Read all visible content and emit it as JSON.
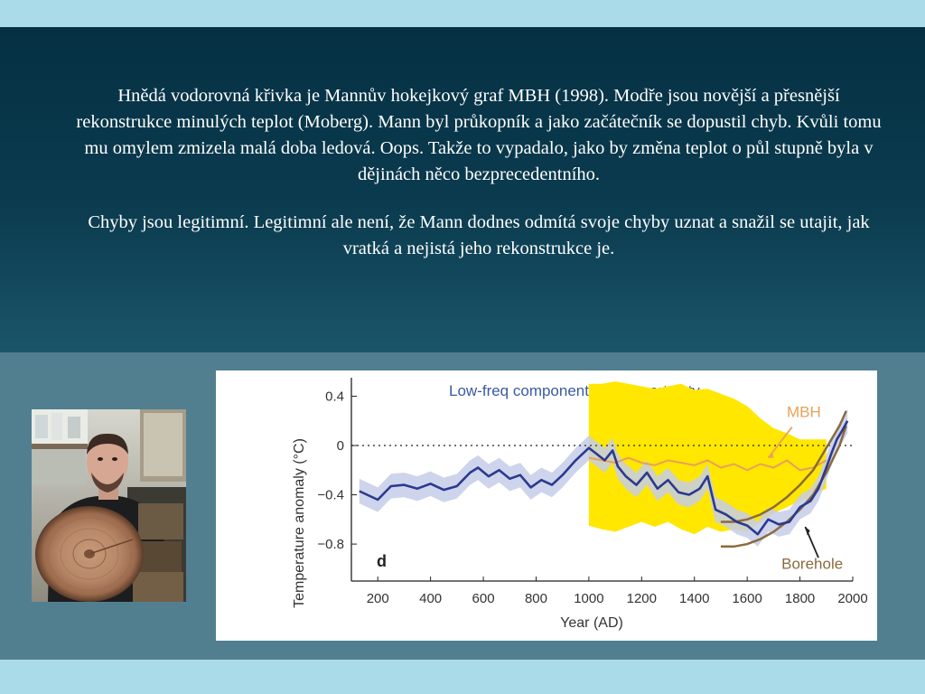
{
  "text": {
    "paragraph1": "Hnědá vodorovná křivka je Mannův hokejkový graf MBH (1998). Modře jsou novější a přesnější rekonstrukce minulých teplot (Moberg). Mann byl průkopník a jako začátečník se dopustil chyb. Kvůli tomu mu omylem zmizela malá doba ledová. Oops. Takže to vypadalo, jako by změna teplot o půl stupně byla v dějinách něco bezprecedentního.",
    "paragraph2": "Chyby jsou legitimní. Legitimní ale není, že Mann dodnes odmítá svoje chyby uznat a snažil se utajit, jak vratká a nejistá jeho rekonstrukce je."
  },
  "colors": {
    "dark_panel": "#053043",
    "mid_panel": "#517f8f",
    "light_strip": "#aadbe9",
    "text": "#ffffff"
  },
  "chart_data": {
    "type": "line",
    "title": "Low-freq component with uncertainty",
    "xlabel": "Year (AD)",
    "ylabel": "Temperature anomaly (°C)",
    "panel_label": "d",
    "xlim": [
      100,
      2000
    ],
    "ylim": [
      -1.1,
      0.55
    ],
    "x_ticks": [
      200,
      400,
      600,
      800,
      1000,
      1200,
      1400,
      1600,
      1800,
      2000
    ],
    "y_ticks": [
      0.4,
      0,
      -0.4,
      -0.8
    ],
    "y_tick_labels": [
      "0.4",
      "0",
      "−0.4",
      "−0.8"
    ],
    "zero_line": "dotted",
    "colors": {
      "moberg": "#2b3990",
      "moberg_band": "#c5cce8",
      "mbh": "#e8a05a",
      "mbh_band": "#ffe700",
      "borehole": "#8b6b3d",
      "title": "#3a5aa0"
    },
    "series": [
      {
        "key": "moberg",
        "x": [
          130,
          200,
          250,
          300,
          350,
          400,
          450,
          500,
          550,
          580,
          620,
          660,
          700,
          740,
          780,
          820,
          860,
          900,
          950,
          1000,
          1030,
          1060,
          1090,
          1110,
          1140,
          1180,
          1220,
          1260,
          1300,
          1340,
          1380,
          1420,
          1450,
          1480,
          1520,
          1560,
          1600,
          1640,
          1680,
          1720,
          1760,
          1800,
          1840,
          1870,
          1900,
          1920,
          1940,
          1960,
          1980
        ],
        "y": [
          -0.37,
          -0.44,
          -0.33,
          -0.32,
          -0.35,
          -0.31,
          -0.36,
          -0.33,
          -0.22,
          -0.18,
          -0.25,
          -0.2,
          -0.27,
          -0.24,
          -0.34,
          -0.28,
          -0.32,
          -0.24,
          -0.12,
          -0.02,
          -0.07,
          -0.12,
          -0.04,
          -0.17,
          -0.25,
          -0.32,
          -0.22,
          -0.35,
          -0.28,
          -0.38,
          -0.4,
          -0.35,
          -0.25,
          -0.52,
          -0.56,
          -0.62,
          -0.65,
          -0.72,
          -0.6,
          -0.64,
          -0.62,
          -0.5,
          -0.45,
          -0.35,
          -0.18,
          -0.06,
          0.05,
          0.12,
          0.2
        ],
        "band_halfwidth": [
          0.1,
          0.1,
          0.1,
          0.1,
          0.1,
          0.1,
          0.1,
          0.1,
          0.1,
          0.1,
          0.1,
          0.1,
          0.1,
          0.1,
          0.1,
          0.1,
          0.1,
          0.1,
          0.1,
          0.1,
          0.1,
          0.1,
          0.1,
          0.1,
          0.1,
          0.1,
          0.1,
          0.1,
          0.1,
          0.1,
          0.1,
          0.1,
          0.1,
          0.1,
          0.1,
          0.1,
          0.1,
          0.1,
          0.1,
          0.1,
          0.1,
          0.1,
          0.1,
          0.1,
          0.1,
          0.1,
          0.1,
          0.1,
          0.1
        ]
      },
      {
        "name": "MBH",
        "key": "mbh",
        "x": [
          1000,
          1050,
          1100,
          1150,
          1200,
          1250,
          1300,
          1350,
          1400,
          1450,
          1500,
          1550,
          1600,
          1650,
          1700,
          1750,
          1800,
          1850,
          1900
        ],
        "y": [
          -0.1,
          -0.12,
          -0.14,
          -0.1,
          -0.14,
          -0.16,
          -0.12,
          -0.14,
          -0.16,
          -0.12,
          -0.18,
          -0.15,
          -0.2,
          -0.15,
          -0.18,
          -0.12,
          -0.2,
          -0.18,
          -0.12
        ],
        "band_upper": [
          0.5,
          0.5,
          0.52,
          0.5,
          0.48,
          0.46,
          0.48,
          0.5,
          0.45,
          0.46,
          0.42,
          0.38,
          0.32,
          0.22,
          0.14,
          0.1,
          0.05,
          0.05,
          0.05
        ],
        "band_lower": [
          -0.65,
          -0.68,
          -0.7,
          -0.66,
          -0.62,
          -0.66,
          -0.62,
          -0.68,
          -0.72,
          -0.66,
          -0.7,
          -0.68,
          -0.7,
          -0.62,
          -0.55,
          -0.5,
          -0.45,
          -0.4,
          -0.35
        ],
        "label_color": "#e8a05a"
      },
      {
        "name": "Borehole",
        "key": "borehole",
        "x": [
          1500,
          1550,
          1600,
          1650,
          1700,
          1750,
          1800,
          1850,
          1900,
          1950,
          1975
        ],
        "y": [
          -0.72,
          -0.72,
          -0.7,
          -0.66,
          -0.6,
          -0.52,
          -0.42,
          -0.3,
          -0.12,
          0.08,
          0.22
        ],
        "band_upper": [
          -0.62,
          -0.62,
          -0.6,
          -0.56,
          -0.5,
          -0.42,
          -0.32,
          -0.2,
          -0.02,
          0.16,
          0.28
        ],
        "band_lower": [
          -0.82,
          -0.82,
          -0.8,
          -0.76,
          -0.7,
          -0.62,
          -0.52,
          -0.4,
          -0.22,
          0.0,
          0.16
        ],
        "label_color": "#8b6b3d"
      }
    ]
  }
}
